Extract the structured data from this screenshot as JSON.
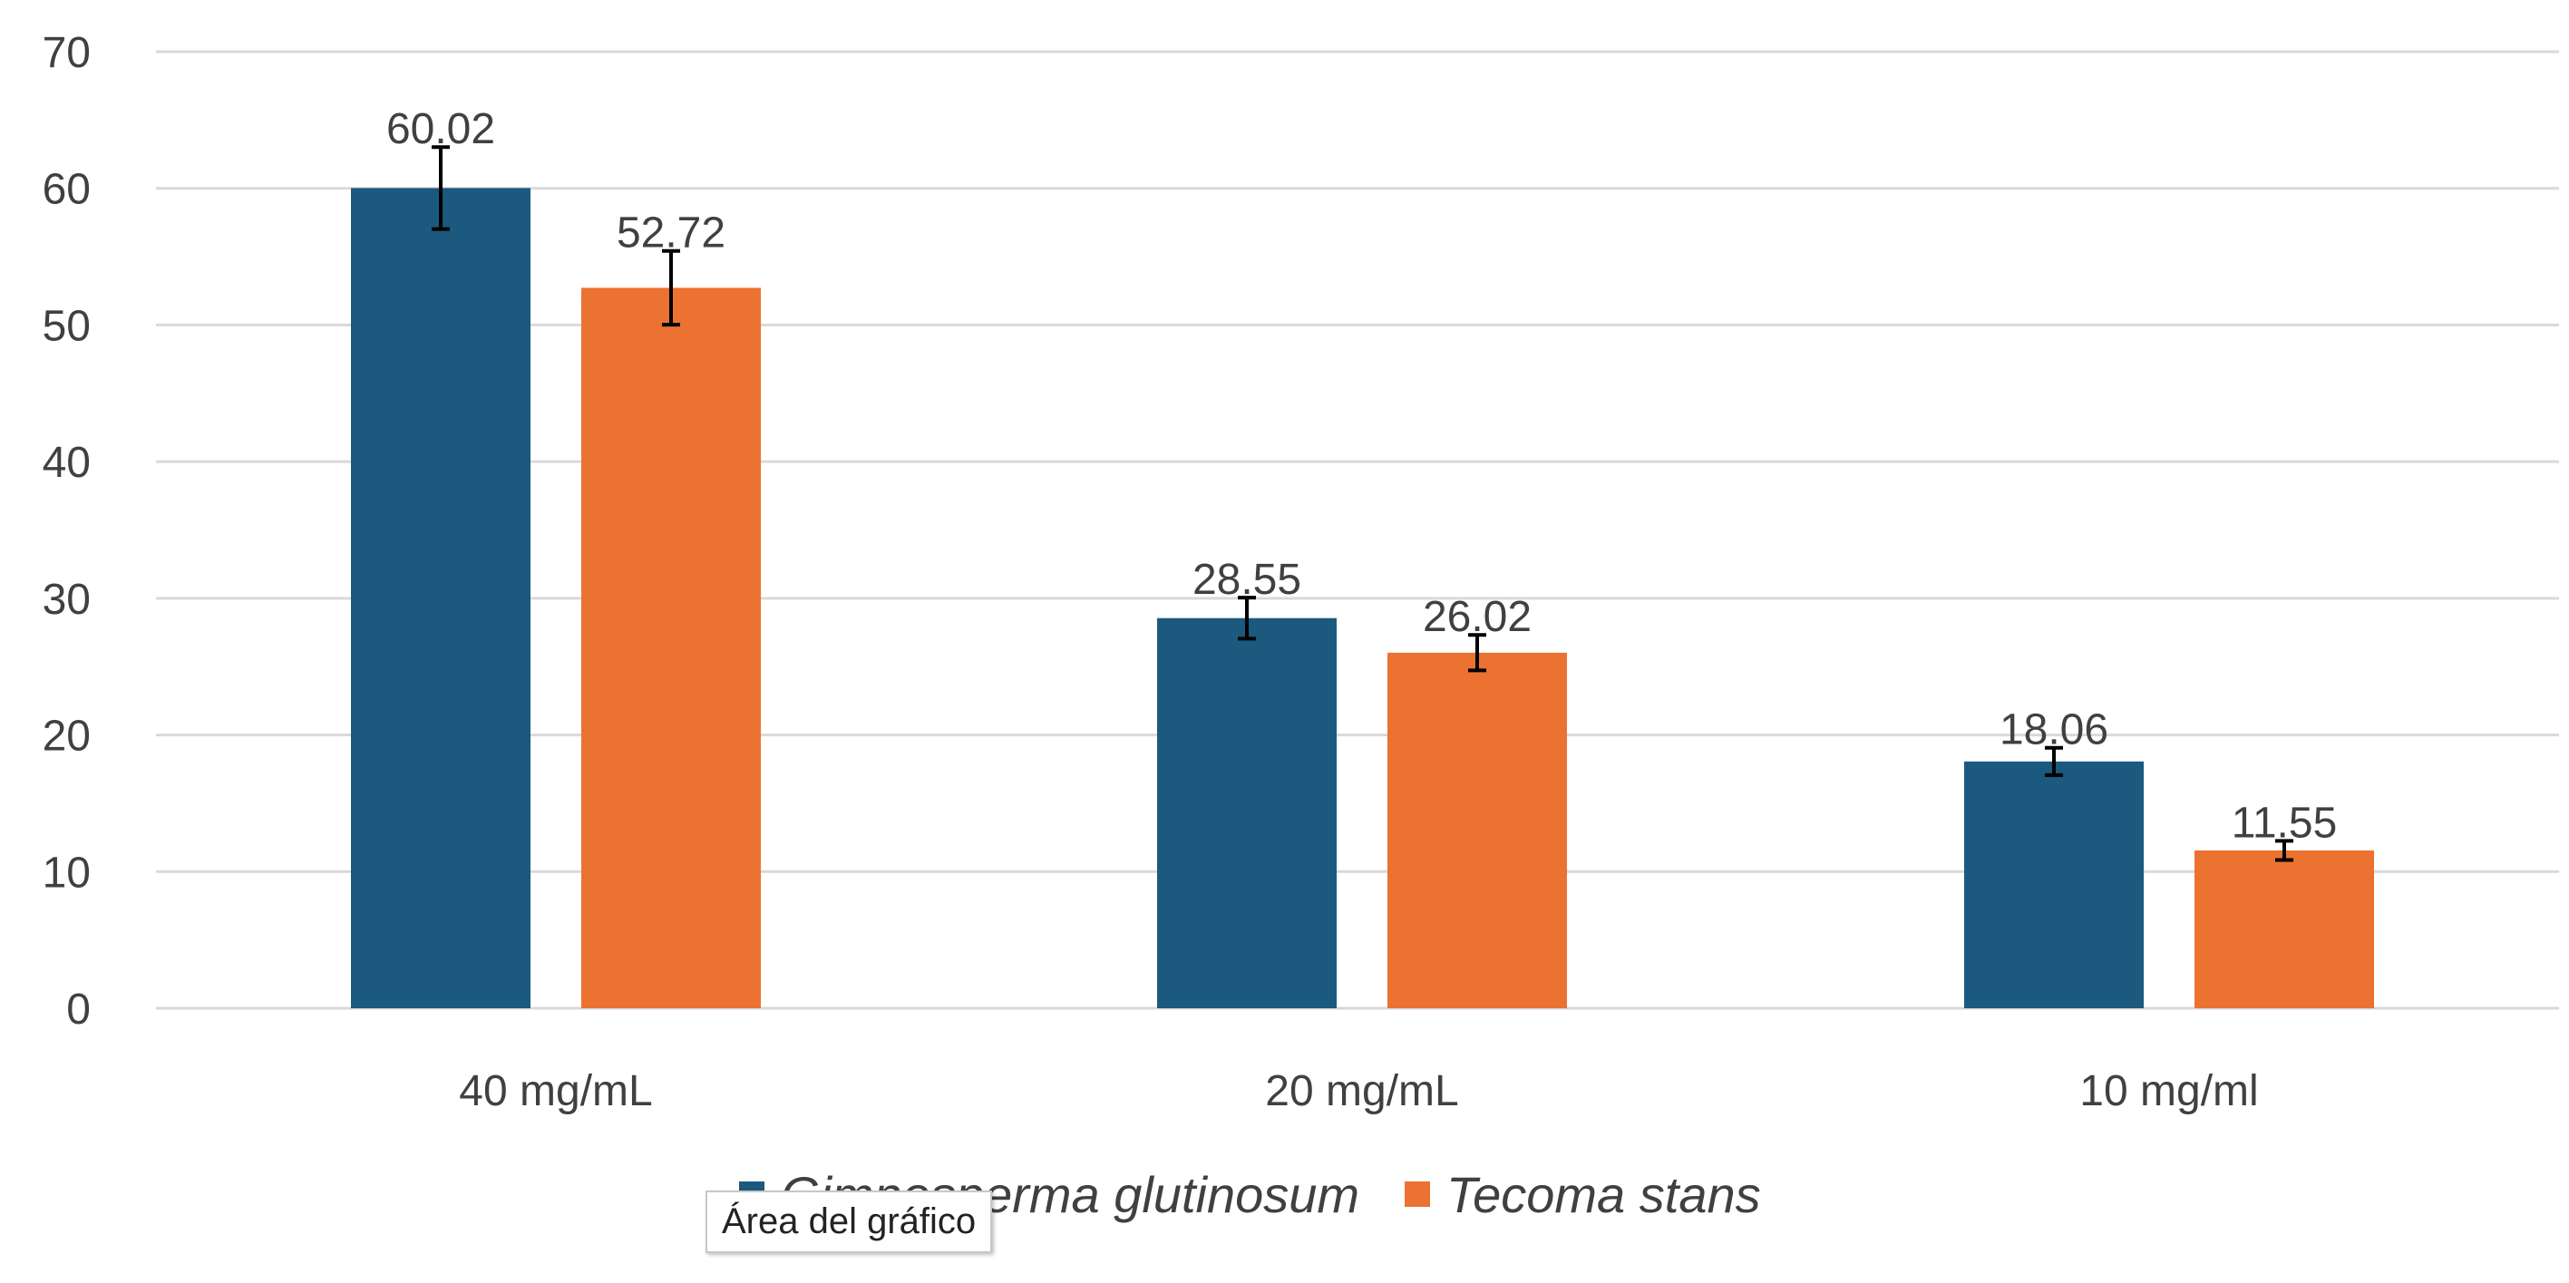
{
  "chart_data": {
    "type": "bar",
    "categories": [
      "40 mg/mL",
      "20 mg/mL",
      "10 mg/ml"
    ],
    "series": [
      {
        "name": "Gimnosperma glutinosum",
        "color": "#1b5a7e",
        "values": [
          60.02,
          28.55,
          18.06
        ],
        "errors": [
          3.0,
          1.5,
          1.0
        ],
        "labels": [
          "60.02",
          "28.55",
          "18.06"
        ]
      },
      {
        "name": "Tecoma stans",
        "color": "#eb7231",
        "values": [
          52.72,
          26.02,
          11.55
        ],
        "errors": [
          2.7,
          1.3,
          0.7
        ],
        "labels": [
          "52.72",
          "26.02",
          "11.55"
        ]
      }
    ],
    "ylim": [
      0,
      70
    ],
    "yticks": [
      0,
      10,
      20,
      30,
      40,
      50,
      60,
      70
    ],
    "grid": true,
    "legend_position": "bottom",
    "title": "",
    "xlabel": "",
    "ylabel": ""
  },
  "tooltip": {
    "text": "Área del gráfico"
  },
  "colors": {
    "grid": "#d9d9d9",
    "text": "#404040",
    "error_bar": "#000000"
  }
}
